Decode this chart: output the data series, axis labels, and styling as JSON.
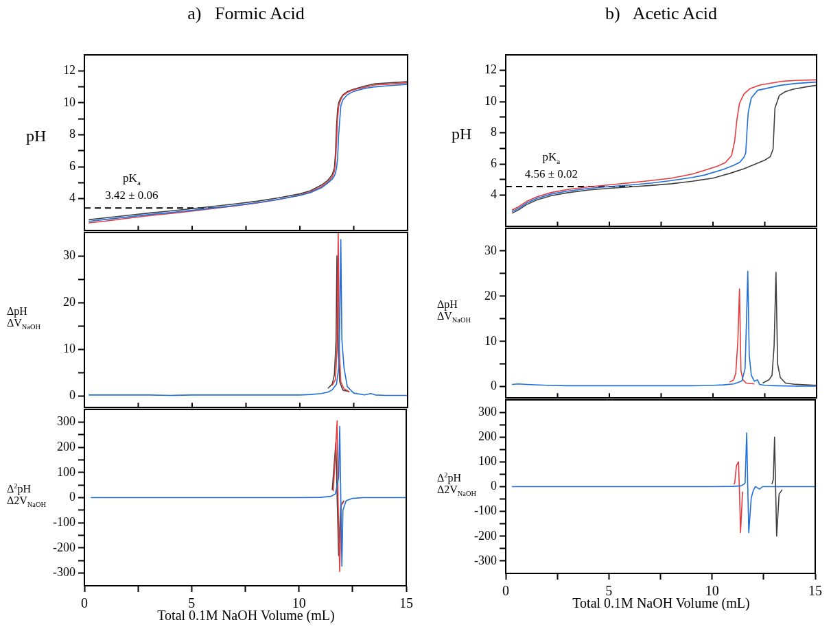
{
  "chart_data": [
    {
      "type": "line",
      "title": "a)   Formic Acid",
      "ylabel": "pH",
      "xlim": [
        0,
        15
      ],
      "xticks": [
        0,
        {
          "value": 2.5,
          "label": null
        },
        5,
        {
          "value": 7.5,
          "label": null
        },
        10,
        {
          "value": 12.5,
          "label": null
        },
        15
      ],
      "ylim": [
        2,
        13
      ],
      "yticks": [
        4,
        {
          "value": 5,
          "label": null
        },
        6,
        {
          "value": 7,
          "label": null
        },
        8,
        {
          "value": 9,
          "label": null
        },
        10,
        {
          "value": 11,
          "label": null
        },
        12
      ],
      "tick_labels": "y",
      "annotations": [
        "pK$_{a}$",
        "3.42 ± 0.06"
      ],
      "series": [
        {
          "color": "#000000",
          "line_style": "dashed",
          "x": [
            0,
            6.1
          ],
          "values": [
            3.42,
            3.42
          ]
        },
        {
          "color": "#3f3f3f",
          "x": [
            0.2,
            1,
            2,
            3,
            4,
            5,
            6,
            7,
            8,
            9,
            10,
            10.5,
            11,
            11.3,
            11.5,
            11.6,
            11.65,
            11.7,
            11.75,
            11.8,
            11.9,
            12,
            12.2,
            12.5,
            13,
            13.5,
            14,
            15
          ],
          "values": [
            2.68,
            2.8,
            2.95,
            3.1,
            3.23,
            3.37,
            3.52,
            3.67,
            3.84,
            4.05,
            4.3,
            4.5,
            4.85,
            5.15,
            5.5,
            5.9,
            6.8,
            8.5,
            9.6,
            10.0,
            10.3,
            10.5,
            10.7,
            10.85,
            11.05,
            11.2,
            11.24,
            11.32
          ]
        },
        {
          "color": "#e8393c",
          "x": [
            0.2,
            1,
            2,
            3,
            4,
            5,
            6,
            7,
            8,
            9,
            10,
            10.5,
            11,
            11.3,
            11.5,
            11.6,
            11.65,
            11.7,
            11.75,
            11.8,
            11.9,
            12,
            12.2,
            12.5,
            13,
            13.5,
            14,
            15
          ],
          "values": [
            2.48,
            2.6,
            2.77,
            2.93,
            3.07,
            3.22,
            3.38,
            3.55,
            3.73,
            3.94,
            4.22,
            4.42,
            4.75,
            5.05,
            5.35,
            5.7,
            6.2,
            7.5,
            9.0,
            9.8,
            10.2,
            10.45,
            10.65,
            10.82,
            10.97,
            11.12,
            11.16,
            11.25
          ]
        },
        {
          "color": "#1f6fdb",
          "x": [
            0.2,
            1,
            2,
            3,
            4,
            5,
            6,
            7,
            8,
            9,
            10,
            10.5,
            11,
            11.3,
            11.5,
            11.6,
            11.65,
            11.7,
            11.75,
            11.8,
            11.9,
            12,
            12.2,
            12.5,
            13,
            13.5,
            14,
            15
          ],
          "values": [
            2.58,
            2.7,
            2.85,
            3.0,
            3.13,
            3.27,
            3.42,
            3.57,
            3.74,
            3.95,
            4.2,
            4.38,
            4.68,
            4.98,
            5.22,
            5.42,
            5.6,
            5.9,
            6.5,
            8.0,
            9.8,
            10.2,
            10.5,
            10.72,
            10.9,
            11.0,
            11.06,
            11.16
          ]
        }
      ]
    },
    {
      "type": "line",
      "ylabel": "ΔpH\nΔV$_{NaOH}$",
      "xlim": [
        0,
        15
      ],
      "xticks": [
        0,
        {
          "value": 2.5,
          "label": null
        },
        5,
        {
          "value": 7.5,
          "label": null
        },
        10,
        {
          "value": 12.5,
          "label": null
        },
        15
      ],
      "ylim": [
        -2.5,
        35
      ],
      "yticks": [
        0,
        {
          "value": 5,
          "label": null
        },
        10,
        {
          "value": 15,
          "label": null
        },
        20,
        {
          "value": 25,
          "label": null
        },
        30
      ],
      "tick_labels": "y",
      "series": [
        {
          "color": "#3f3f3f",
          "x": [
            11.3,
            11.5,
            11.6,
            11.68,
            11.72,
            11.78,
            11.85,
            12,
            12.3
          ],
          "values": [
            1.6,
            2.5,
            4.5,
            12,
            30,
            10,
            3,
            1.2,
            0.9
          ]
        },
        {
          "color": "#e8393c",
          "x": [
            11.5,
            11.65,
            11.72,
            11.78,
            11.83,
            11.9,
            12.05,
            12.3
          ],
          "values": [
            2.2,
            3.5,
            10,
            35,
            10,
            3,
            1.5,
            0.9
          ]
        },
        {
          "color": "#1f6fdb",
          "x": [
            0.2,
            1,
            2,
            3,
            4,
            5,
            6,
            7,
            8,
            9,
            10,
            10.5,
            11,
            11.3,
            11.5,
            11.7,
            11.8,
            11.85,
            11.9,
            11.95,
            12.05,
            12.2,
            12.5,
            13,
            13.3,
            13.5,
            14,
            15
          ],
          "values": [
            0.2,
            0.2,
            0.2,
            0.2,
            0.1,
            0.2,
            0.2,
            0.2,
            0.2,
            0.2,
            0.2,
            0.3,
            0.5,
            0.8,
            1.3,
            2.5,
            6,
            15,
            33.5,
            12,
            6,
            2,
            0.6,
            0.2,
            0.5,
            0.2,
            0.1,
            0.1
          ]
        }
      ]
    },
    {
      "type": "line",
      "ylabel": "Δ$^{2}$pH\nΔ2V$_{NaOH}$",
      "xlabel": "Total 0.1M NaOH Volume (mL)",
      "xlim": [
        0,
        15
      ],
      "xticks": [
        0,
        {
          "value": 2.5,
          "label": null
        },
        5,
        {
          "value": 7.5,
          "label": null
        },
        10,
        {
          "value": 12.5,
          "label": null
        },
        15
      ],
      "ylim": [
        -350,
        350
      ],
      "yticks": [
        -300,
        {
          "value": -250,
          "label": null
        },
        -200,
        {
          "value": -150,
          "label": null
        },
        -100,
        {
          "value": -50,
          "label": null
        },
        0,
        {
          "value": 50,
          "label": null
        },
        100,
        {
          "value": 150,
          "label": null
        },
        200,
        {
          "value": 250,
          "label": null
        },
        300
      ],
      "series": [
        {
          "color": "#3f3f3f",
          "x": [
            11.55,
            11.72,
            11.78,
            11.85,
            11.95,
            12.1
          ],
          "values": [
            30,
            220,
            0,
            -230,
            -30,
            -12
          ]
        },
        {
          "color": "#e8393c",
          "x": [
            11.6,
            11.78,
            11.82,
            11.9,
            11.97,
            12.1
          ],
          "values": [
            25,
            305,
            0,
            -294,
            -30,
            -16
          ]
        },
        {
          "color": "#1f6fdb",
          "x": [
            0.3,
            2,
            4,
            6,
            8,
            10,
            11,
            11.5,
            11.7,
            11.85,
            11.9,
            11.95,
            12.0,
            12.05,
            12.2,
            12.5,
            13,
            14,
            15
          ],
          "values": [
            0,
            0,
            0,
            0,
            0,
            0,
            1,
            5,
            15,
            80,
            283,
            0,
            -272,
            -50,
            -12,
            -3,
            0,
            0,
            0
          ]
        }
      ]
    },
    {
      "type": "line",
      "title": "b)   Acetic Acid",
      "ylabel": "pH",
      "xlim": [
        0,
        15
      ],
      "xticks": [
        0,
        {
          "value": 2.5,
          "label": null
        },
        5,
        {
          "value": 7.5,
          "label": null
        },
        10,
        {
          "value": 12.5,
          "label": null
        },
        15
      ],
      "ylim": [
        2,
        13
      ],
      "yticks": [
        4,
        {
          "value": 5,
          "label": null
        },
        6,
        {
          "value": 7,
          "label": null
        },
        8,
        {
          "value": 9,
          "label": null
        },
        10,
        {
          "value": 11,
          "label": null
        },
        12
      ],
      "tick_labels": "y",
      "annotations": [
        "pK$_{a}$",
        "4.56 ± 0.02"
      ],
      "series": [
        {
          "color": "#000000",
          "line_style": "dashed",
          "x": [
            0,
            6.1
          ],
          "values": [
            4.56,
            4.56
          ]
        },
        {
          "color": "#3f3f3f",
          "x": [
            0.3,
            0.6,
            1,
            1.5,
            2.2,
            3,
            4,
            5,
            6,
            7,
            8,
            9,
            10,
            10.8,
            11.5,
            12.04,
            12.5,
            12.77,
            12.9,
            12.99,
            13.2,
            13.5,
            13.87,
            14.5,
            15
          ],
          "values": [
            2.85,
            3.05,
            3.4,
            3.7,
            3.98,
            4.17,
            4.34,
            4.45,
            4.54,
            4.63,
            4.74,
            4.9,
            5.1,
            5.4,
            5.7,
            6.0,
            6.25,
            6.48,
            6.97,
            9.58,
            10.4,
            10.65,
            10.8,
            10.95,
            11.05
          ]
        },
        {
          "color": "#e8393c",
          "x": [
            0.3,
            0.6,
            1,
            1.5,
            2.2,
            3,
            4,
            5,
            6,
            7,
            8,
            9,
            9.6,
            10.2,
            10.6,
            10.9,
            11.05,
            11.15,
            11.28,
            11.5,
            11.8,
            12.3,
            13.3,
            14,
            15
          ],
          "values": [
            3.05,
            3.25,
            3.6,
            3.9,
            4.18,
            4.37,
            4.54,
            4.67,
            4.8,
            4.94,
            5.1,
            5.36,
            5.6,
            5.86,
            6.1,
            6.55,
            7.5,
            8.8,
            9.9,
            10.5,
            10.85,
            11.08,
            11.3,
            11.36,
            11.4
          ]
        },
        {
          "color": "#1f6fdb",
          "x": [
            0.3,
            0.6,
            1,
            1.5,
            2.2,
            3,
            4,
            5,
            6,
            7,
            8,
            9,
            9.6,
            10.5,
            11,
            11.3,
            11.5,
            11.58,
            11.65,
            11.7,
            11.85,
            12.16,
            13.26,
            14,
            15
          ],
          "values": [
            2.95,
            3.15,
            3.5,
            3.8,
            4.08,
            4.27,
            4.44,
            4.56,
            4.66,
            4.78,
            4.94,
            5.14,
            5.3,
            5.66,
            5.92,
            6.12,
            6.45,
            6.72,
            8.3,
            9.3,
            10.24,
            10.73,
            11.05,
            11.17,
            11.26
          ]
        }
      ]
    },
    {
      "type": "line",
      "ylabel": "ΔpH\nΔV$_{NaOH}$",
      "xlim": [
        0,
        15
      ],
      "xticks": [
        0,
        {
          "value": 2.5,
          "label": null
        },
        5,
        {
          "value": 7.5,
          "label": null
        },
        10,
        {
          "value": 12.5,
          "label": null
        },
        15
      ],
      "ylim": [
        -2.5,
        35
      ],
      "yticks": [
        0,
        {
          "value": 5,
          "label": null
        },
        10,
        {
          "value": 15,
          "label": null
        },
        20,
        {
          "value": 25,
          "label": null
        },
        30
      ],
      "tick_labels": "y",
      "series": [
        {
          "color": "#3f3f3f",
          "x": [
            12.4,
            12.7,
            12.85,
            12.95,
            13.04,
            13.12,
            13.25,
            13.5,
            14,
            14.5,
            15
          ],
          "values": [
            0.8,
            1.5,
            2.5,
            9,
            25.3,
            5,
            2,
            0.8,
            0.5,
            0.4,
            0.3
          ]
        },
        {
          "color": "#e8393c",
          "x": [
            10.8,
            11.0,
            11.1,
            11.2,
            11.28,
            11.35,
            11.45,
            11.6,
            12
          ],
          "values": [
            1.0,
            1.5,
            3,
            10,
            21.6,
            3.5,
            1.5,
            0.8,
            0.6
          ]
        },
        {
          "color": "#1f6fdb",
          "x": [
            0.3,
            0.6,
            1,
            2,
            3,
            4,
            5,
            6,
            7,
            8,
            9,
            10,
            10.5,
            11,
            11.2,
            11.4,
            11.55,
            11.62,
            11.68,
            11.75,
            11.85,
            12.0,
            12.15,
            12.25,
            12.5,
            13,
            14,
            15
          ],
          "values": [
            0.5,
            0.6,
            0.5,
            0.3,
            0.2,
            0.2,
            0.2,
            0.2,
            0.2,
            0.2,
            0.2,
            0.3,
            0.4,
            0.6,
            0.9,
            1.3,
            4,
            15,
            25.5,
            7,
            2.5,
            1.2,
            1.5,
            0.5,
            0.3,
            0.2,
            0.1,
            0.1
          ]
        }
      ]
    },
    {
      "type": "line",
      "ylabel": "Δ$^{2}$pH\nΔ2V$_{NaOH}$",
      "xlabel": "Total 0.1M NaOH Volume (mL)",
      "xlim": [
        0,
        15
      ],
      "xticks": [
        0,
        {
          "value": 2.5,
          "label": null
        },
        5,
        {
          "value": 7.5,
          "label": null
        },
        10,
        {
          "value": 12.5,
          "label": null
        },
        15
      ],
      "ylim": [
        -350,
        350
      ],
      "yticks": [
        -300,
        {
          "value": -250,
          "label": null
        },
        -200,
        {
          "value": -150,
          "label": null
        },
        -100,
        {
          "value": -50,
          "label": null
        },
        0,
        {
          "value": 50,
          "label": null
        },
        100,
        {
          "value": 150,
          "label": null
        },
        200,
        {
          "value": 250,
          "label": null
        },
        300
      ],
      "series": [
        {
          "color": "#3f3f3f",
          "x": [
            12.9,
            12.97,
            13.03,
            13.08,
            13.13,
            13.25,
            13.4
          ],
          "values": [
            10,
            30,
            200,
            0,
            -200,
            -30,
            -12
          ]
        },
        {
          "color": "#e8393c",
          "x": [
            11.05,
            11.1,
            11.18,
            11.28,
            11.33,
            11.38,
            11.48
          ],
          "values": [
            10,
            15,
            85,
            100,
            -20,
            -185,
            -20
          ]
        },
        {
          "color": "#1f6fdb",
          "x": [
            0.3,
            2,
            4,
            6,
            8,
            10,
            11,
            11.4,
            11.55,
            11.6,
            11.68,
            11.73,
            11.78,
            11.9,
            12.0,
            12.1,
            12.3,
            12.45,
            13,
            15
          ],
          "values": [
            0,
            0,
            0,
            0,
            0,
            0,
            1,
            3,
            10,
            15,
            217,
            0,
            -185,
            -45,
            -15,
            0,
            -10,
            0,
            0,
            0
          ]
        }
      ]
    }
  ]
}
